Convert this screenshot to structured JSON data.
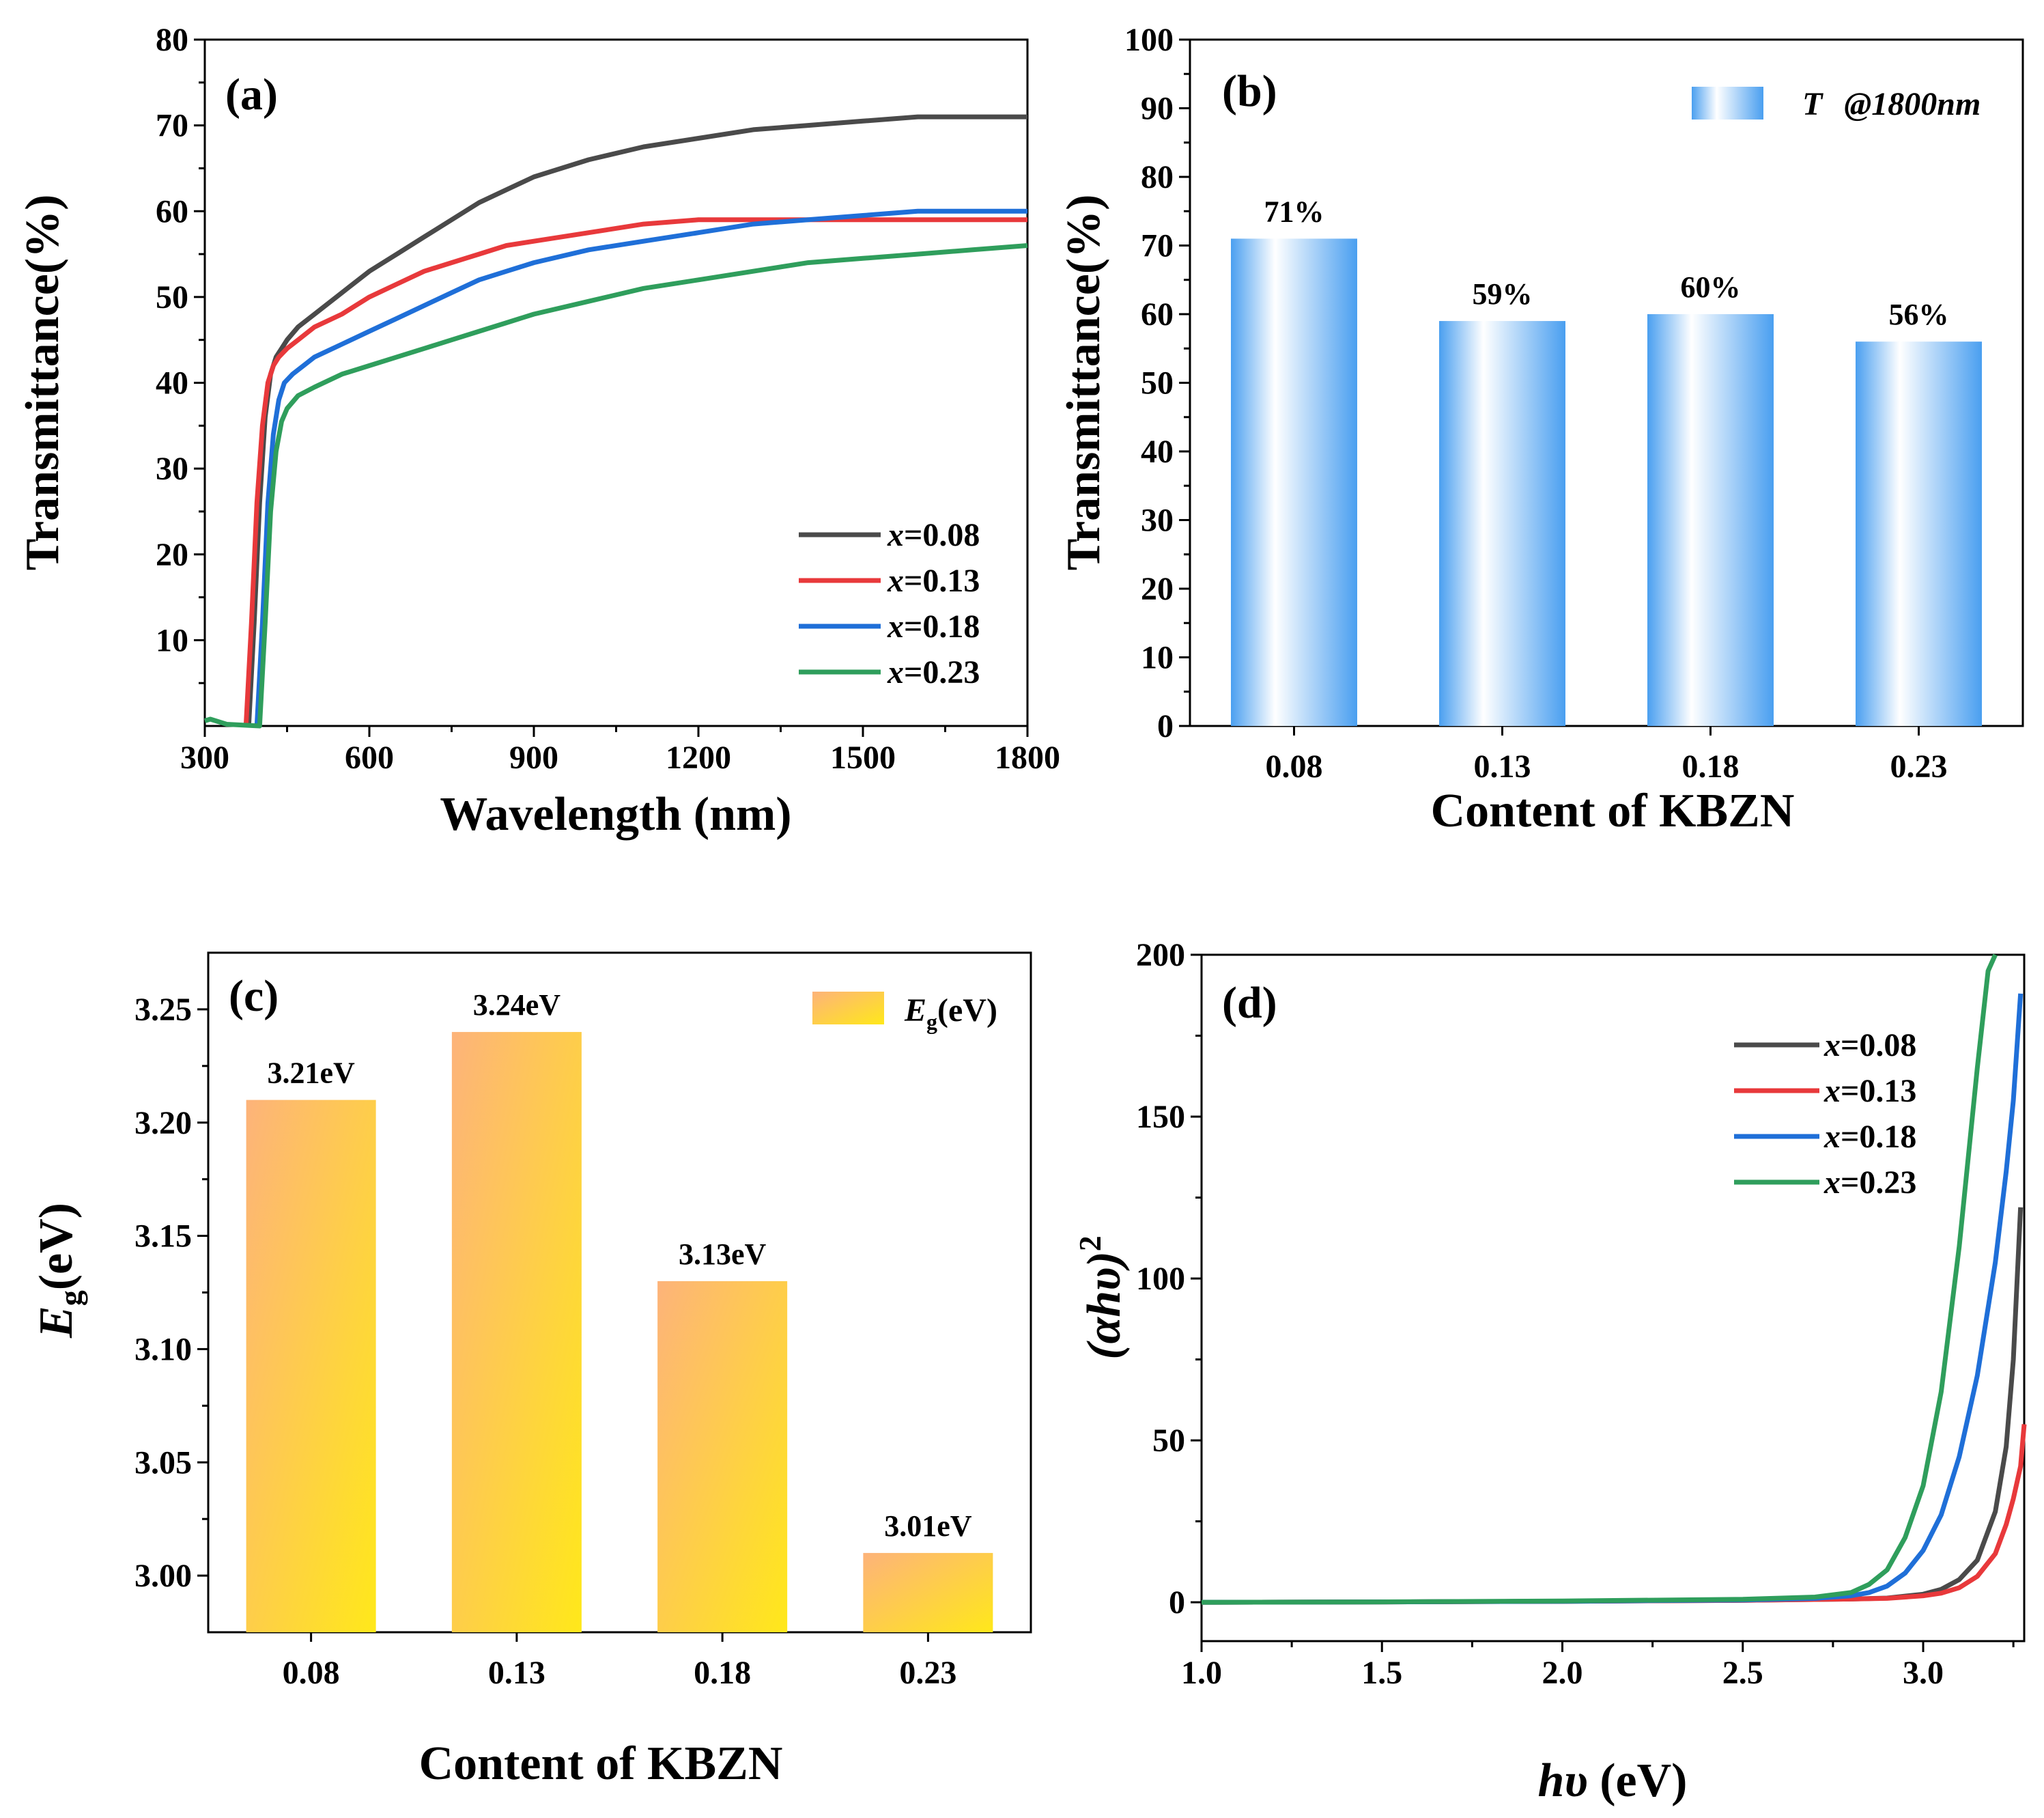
{
  "chart_data": [
    {
      "panel": "(a)",
      "type": "line",
      "xlabel": "Wavelength (nm)",
      "ylabel": "Transmittance(%)",
      "xlim": [
        300,
        1800
      ],
      "ylim": [
        0,
        80
      ],
      "xticks": [
        "300",
        "600",
        "900",
        "1200",
        "1500",
        "1800"
      ],
      "yticks": [
        "10",
        "20",
        "30",
        "40",
        "50",
        "60",
        "70",
        "80"
      ],
      "legend_position": "bottom-right",
      "series": [
        {
          "name": "x=0.08",
          "label_var": "x",
          "label_val": "=0.08",
          "color": "#4a4a4a",
          "x": [
            380,
            390,
            400,
            410,
            420,
            430,
            440,
            450,
            470,
            500,
            550,
            600,
            650,
            700,
            750,
            800,
            850,
            900,
            1000,
            1100,
            1200,
            1300,
            1400,
            1500,
            1600,
            1700,
            1800
          ],
          "y": [
            0,
            12,
            26,
            36,
            41,
            43,
            44,
            45,
            46.5,
            48,
            50.5,
            53,
            55,
            57,
            59,
            61,
            62.5,
            64,
            66,
            67.5,
            68.5,
            69.5,
            70,
            70.5,
            71,
            71,
            71
          ]
        },
        {
          "name": "x=0.13",
          "label_var": "x",
          "label_val": "=0.13",
          "color": "#e8393b",
          "x": [
            375,
            385,
            395,
            405,
            415,
            425,
            435,
            450,
            470,
            500,
            550,
            600,
            650,
            700,
            750,
            800,
            850,
            900,
            1000,
            1100,
            1200,
            1300,
            1400,
            1500,
            1600,
            1700,
            1800
          ],
          "y": [
            0,
            12,
            26,
            35,
            40,
            42,
            43,
            44,
            45,
            46.5,
            48,
            50,
            51.5,
            53,
            54,
            55,
            56,
            56.5,
            57.5,
            58.5,
            59,
            59,
            59,
            59,
            59,
            59,
            59
          ]
        },
        {
          "name": "x=0.18",
          "label_var": "x",
          "label_val": "=0.18",
          "color": "#1f6fd8",
          "x": [
            395,
            405,
            415,
            425,
            435,
            445,
            460,
            480,
            500,
            550,
            600,
            650,
            700,
            750,
            800,
            850,
            900,
            1000,
            1100,
            1200,
            1300,
            1400,
            1500,
            1600,
            1700,
            1800
          ],
          "y": [
            0,
            12,
            26,
            34,
            38,
            40,
            41,
            42,
            43,
            44.5,
            46,
            47.5,
            49,
            50.5,
            52,
            53,
            54,
            55.5,
            56.5,
            57.5,
            58.5,
            59,
            59.5,
            60,
            60,
            60
          ]
        },
        {
          "name": "x=0.23",
          "label_var": "x",
          "label_val": "=0.23",
          "color": "#2f9e5c",
          "x": [
            300,
            310,
            320,
            330,
            340,
            400,
            410,
            420,
            430,
            440,
            450,
            470,
            500,
            550,
            600,
            650,
            700,
            750,
            800,
            850,
            900,
            1000,
            1100,
            1200,
            1300,
            1400,
            1500,
            1600,
            1700,
            1800
          ],
          "y": [
            0.6,
            0.8,
            0.6,
            0.4,
            0.2,
            0,
            12,
            25,
            32,
            35.5,
            37,
            38.5,
            39.5,
            41,
            42,
            43,
            44,
            45,
            46,
            47,
            48,
            49.5,
            51,
            52,
            53,
            54,
            54.5,
            55,
            55.5,
            56
          ]
        }
      ]
    },
    {
      "panel": "(b)",
      "type": "bar",
      "xlabel": "Content of KBZN",
      "ylabel": "Transmittance(%)",
      "ylim": [
        0,
        100
      ],
      "yticks": [
        "0",
        "10",
        "20",
        "30",
        "40",
        "50",
        "60",
        "70",
        "80",
        "90",
        "100"
      ],
      "categories": [
        "0.08",
        "0.13",
        "0.18",
        "0.23"
      ],
      "values": [
        71,
        59,
        60,
        56
      ],
      "value_labels": [
        "71%",
        "59%",
        "60%",
        "56%"
      ],
      "legend": {
        "var": "T",
        "rest": "@1800nm"
      },
      "legend_position": "top-right",
      "color": "#4a9ff0"
    },
    {
      "panel": "(c)",
      "type": "bar",
      "xlabel": "Content of KBZN",
      "ylabel_main": "E",
      "ylabel_sub": "g",
      "ylabel_rest": "(eV)",
      "ylim": [
        2.975,
        3.275
      ],
      "yticks": [
        "3.00",
        "3.05",
        "3.10",
        "3.15",
        "3.20",
        "3.25"
      ],
      "yticks_values": [
        3.0,
        3.05,
        3.1,
        3.15,
        3.2,
        3.25
      ],
      "categories": [
        "0.08",
        "0.13",
        "0.18",
        "0.23"
      ],
      "values": [
        3.21,
        3.24,
        3.13,
        3.01
      ],
      "value_labels": [
        "3.21eV",
        "3.24eV",
        "3.13eV",
        "3.01eV"
      ],
      "legend": {
        "main": "E",
        "sub": "g",
        "rest": "(eV)"
      },
      "legend_position": "top-right",
      "colors": [
        "#fdb37a",
        "#ffe81a"
      ]
    },
    {
      "panel": "(d)",
      "type": "line",
      "xlabel_var": "hυ",
      "xlabel_rest": " (eV)",
      "ylabel_text": "(αhυ)",
      "ylabel_sup": "2",
      "xlim": [
        1.0,
        3.28
      ],
      "ylim": [
        -12,
        200
      ],
      "xticks": [
        "1.0",
        "1.5",
        "2.0",
        "2.5",
        "3.0"
      ],
      "xticks_values": [
        1.0,
        1.5,
        2.0,
        2.5,
        3.0
      ],
      "yticks": [
        "0",
        "50",
        "100",
        "150",
        "200"
      ],
      "yticks_values": [
        0,
        50,
        100,
        150,
        200
      ],
      "legend_position": "top-right",
      "series": [
        {
          "name": "x=0.08",
          "label_var": "x",
          "label_val": "=0.08",
          "color": "#4a4a4a",
          "x": [
            1.0,
            1.5,
            2.0,
            2.5,
            2.8,
            2.9,
            3.0,
            3.05,
            3.1,
            3.15,
            3.2,
            3.23,
            3.25,
            3.27
          ],
          "y": [
            0,
            0.1,
            0.3,
            0.6,
            1.0,
            1.3,
            2.5,
            4,
            7,
            13,
            28,
            48,
            75,
            122
          ]
        },
        {
          "name": "x=0.13",
          "label_var": "x",
          "label_val": "=0.13",
          "color": "#e8393b",
          "x": [
            1.0,
            1.5,
            2.0,
            2.5,
            2.8,
            2.9,
            3.0,
            3.05,
            3.1,
            3.15,
            3.2,
            3.23,
            3.25,
            3.27,
            3.28
          ],
          "y": [
            0,
            0.1,
            0.3,
            0.6,
            1.0,
            1.2,
            2.0,
            2.8,
            4.5,
            8,
            15,
            24,
            32,
            42,
            55
          ]
        },
        {
          "name": "x=0.18",
          "label_var": "x",
          "label_val": "=0.18",
          "color": "#1f6fd8",
          "x": [
            1.0,
            1.5,
            2.0,
            2.5,
            2.7,
            2.8,
            2.85,
            2.9,
            2.95,
            3.0,
            3.05,
            3.1,
            3.15,
            3.2,
            3.23,
            3.25,
            3.27
          ],
          "y": [
            0,
            0.1,
            0.3,
            0.7,
            1.2,
            2.0,
            3.0,
            5.0,
            9,
            16,
            27,
            45,
            70,
            105,
            133,
            155,
            188
          ]
        },
        {
          "name": "x=0.23",
          "label_var": "x",
          "label_val": "=0.23",
          "color": "#2f9e5c",
          "x": [
            1.0,
            1.5,
            2.0,
            2.5,
            2.7,
            2.8,
            2.85,
            2.9,
            2.95,
            3.0,
            3.05,
            3.1,
            3.15,
            3.18,
            3.2
          ],
          "y": [
            0,
            0.1,
            0.4,
            0.9,
            1.6,
            3.0,
            5.5,
            10,
            20,
            36,
            65,
            110,
            165,
            195,
            200
          ]
        }
      ]
    }
  ]
}
